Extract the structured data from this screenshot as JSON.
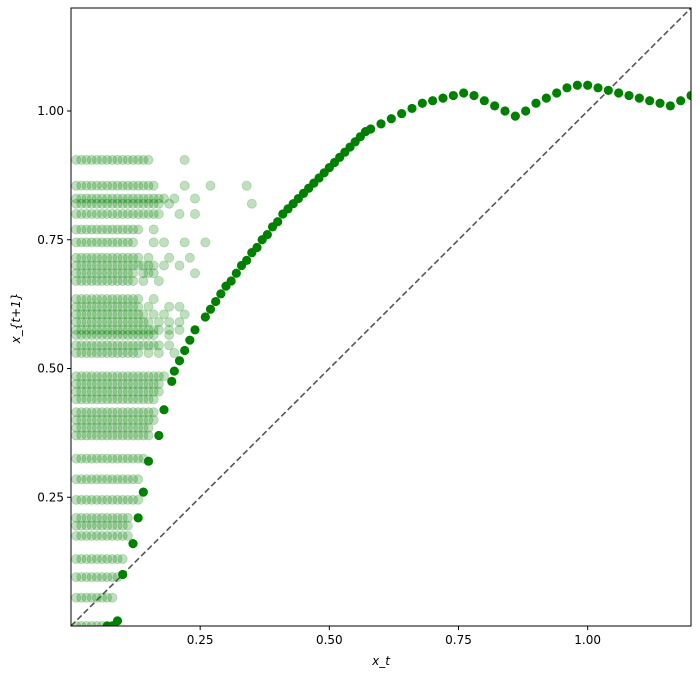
{
  "chart_data": {
    "type": "scatter",
    "title": "",
    "xlabel": "x_t",
    "ylabel": "x_{t+1}",
    "xlim": [
      0.0,
      1.2
    ],
    "ylim": [
      0.0,
      1.2
    ],
    "grid": false,
    "xticks": [
      0.25,
      0.5,
      0.75,
      1.0
    ],
    "yticks": [
      0.25,
      0.5,
      0.75,
      1.0
    ],
    "xtick_labels": [
      "0.25",
      "0.50",
      "0.75",
      "1.00"
    ],
    "ytick_labels": [
      "0.25",
      "0.50",
      "0.75",
      "1.00"
    ],
    "reference_line": {
      "style": "dashed",
      "color": "#555555",
      "points": [
        [
          0.0,
          0.0
        ],
        [
          1.2,
          1.2
        ]
      ]
    },
    "colors": {
      "main": "#008000",
      "cloud": "#008000"
    },
    "series": [
      {
        "opacity": 0.25,
        "cloud_rows": [
          {
            "y": 0.905,
            "x": [
              0.01,
              0.02,
              0.03,
              0.04,
              0.05,
              0.06,
              0.07,
              0.08,
              0.09,
              0.1,
              0.11,
              0.12,
              0.13,
              0.14,
              0.15,
              0.22
            ]
          },
          {
            "y": 0.855,
            "x": [
              0.01,
              0.02,
              0.03,
              0.04,
              0.05,
              0.06,
              0.07,
              0.08,
              0.09,
              0.1,
              0.11,
              0.12,
              0.13,
              0.14,
              0.15,
              0.16,
              0.22,
              0.27,
              0.34
            ]
          },
          {
            "y": 0.83,
            "x": [
              0.01,
              0.02,
              0.03,
              0.04,
              0.05,
              0.06,
              0.07,
              0.08,
              0.09,
              0.1,
              0.11,
              0.12,
              0.13,
              0.14,
              0.15,
              0.16,
              0.17,
              0.18,
              0.2,
              0.24
            ]
          },
          {
            "y": 0.82,
            "x": [
              0.01,
              0.02,
              0.03,
              0.04,
              0.05,
              0.06,
              0.07,
              0.08,
              0.09,
              0.1,
              0.11,
              0.12,
              0.13,
              0.14,
              0.15,
              0.16,
              0.17,
              0.19,
              0.35
            ]
          },
          {
            "y": 0.8,
            "x": [
              0.01,
              0.02,
              0.03,
              0.04,
              0.05,
              0.06,
              0.07,
              0.08,
              0.09,
              0.1,
              0.11,
              0.12,
              0.13,
              0.14,
              0.15,
              0.16,
              0.17,
              0.21,
              0.24
            ]
          },
          {
            "y": 0.77,
            "x": [
              0.01,
              0.02,
              0.03,
              0.04,
              0.05,
              0.06,
              0.07,
              0.08,
              0.09,
              0.1,
              0.11,
              0.12,
              0.13,
              0.16
            ]
          },
          {
            "y": 0.745,
            "x": [
              0.01,
              0.02,
              0.03,
              0.04,
              0.05,
              0.06,
              0.07,
              0.08,
              0.09,
              0.1,
              0.11,
              0.12,
              0.16,
              0.18,
              0.22,
              0.26
            ]
          },
          {
            "y": 0.715,
            "x": [
              0.01,
              0.02,
              0.03,
              0.04,
              0.05,
              0.06,
              0.07,
              0.08,
              0.09,
              0.1,
              0.11,
              0.12,
              0.13,
              0.15,
              0.19,
              0.23
            ]
          },
          {
            "y": 0.7,
            "x": [
              0.01,
              0.02,
              0.03,
              0.04,
              0.05,
              0.06,
              0.07,
              0.08,
              0.09,
              0.1,
              0.11,
              0.12,
              0.13,
              0.14,
              0.15,
              0.16,
              0.18,
              0.21
            ]
          },
          {
            "y": 0.685,
            "x": [
              0.01,
              0.02,
              0.03,
              0.04,
              0.05,
              0.06,
              0.07,
              0.08,
              0.09,
              0.1,
              0.11,
              0.12,
              0.14,
              0.15,
              0.16,
              0.24
            ]
          },
          {
            "y": 0.67,
            "x": [
              0.01,
              0.02,
              0.03,
              0.04,
              0.05,
              0.06,
              0.07,
              0.08,
              0.09,
              0.1,
              0.11,
              0.12,
              0.14,
              0.17
            ]
          },
          {
            "y": 0.635,
            "x": [
              0.01,
              0.02,
              0.03,
              0.04,
              0.05,
              0.06,
              0.07,
              0.08,
              0.09,
              0.1,
              0.11,
              0.12,
              0.13,
              0.16
            ]
          },
          {
            "y": 0.62,
            "x": [
              0.01,
              0.02,
              0.03,
              0.04,
              0.05,
              0.06,
              0.07,
              0.08,
              0.09,
              0.1,
              0.11,
              0.12,
              0.13,
              0.15,
              0.19,
              0.21
            ]
          },
          {
            "y": 0.605,
            "x": [
              0.01,
              0.02,
              0.03,
              0.04,
              0.05,
              0.06,
              0.07,
              0.08,
              0.09,
              0.1,
              0.11,
              0.12,
              0.13,
              0.14,
              0.16,
              0.18,
              0.22
            ]
          },
          {
            "y": 0.59,
            "x": [
              0.01,
              0.02,
              0.03,
              0.04,
              0.05,
              0.06,
              0.07,
              0.08,
              0.09,
              0.1,
              0.11,
              0.12,
              0.13,
              0.14,
              0.15,
              0.17,
              0.19,
              0.21
            ]
          },
          {
            "y": 0.575,
            "x": [
              0.01,
              0.02,
              0.03,
              0.04,
              0.05,
              0.06,
              0.07,
              0.08,
              0.09,
              0.1,
              0.11,
              0.12,
              0.13,
              0.14,
              0.15,
              0.16,
              0.17,
              0.19,
              0.21
            ]
          },
          {
            "y": 0.565,
            "x": [
              0.01,
              0.02,
              0.03,
              0.04,
              0.05,
              0.06,
              0.07,
              0.08,
              0.09,
              0.1,
              0.11,
              0.12,
              0.13,
              0.14,
              0.15,
              0.16,
              0.19
            ]
          },
          {
            "y": 0.545,
            "x": [
              0.01,
              0.02,
              0.03,
              0.04,
              0.05,
              0.06,
              0.07,
              0.08,
              0.09,
              0.1,
              0.11,
              0.12,
              0.13,
              0.14,
              0.15,
              0.16,
              0.17,
              0.19
            ]
          },
          {
            "y": 0.53,
            "x": [
              0.01,
              0.02,
              0.03,
              0.04,
              0.05,
              0.06,
              0.07,
              0.08,
              0.09,
              0.1,
              0.11,
              0.12,
              0.13,
              0.15,
              0.17,
              0.2
            ]
          },
          {
            "y": 0.485,
            "x": [
              0.01,
              0.02,
              0.03,
              0.04,
              0.05,
              0.06,
              0.07,
              0.08,
              0.09,
              0.1,
              0.11,
              0.12,
              0.13,
              0.14,
              0.15,
              0.16,
              0.17,
              0.18
            ]
          },
          {
            "y": 0.47,
            "x": [
              0.01,
              0.02,
              0.03,
              0.04,
              0.05,
              0.06,
              0.07,
              0.08,
              0.09,
              0.1,
              0.11,
              0.12,
              0.13,
              0.14,
              0.15,
              0.16,
              0.17
            ]
          },
          {
            "y": 0.455,
            "x": [
              0.01,
              0.02,
              0.03,
              0.04,
              0.05,
              0.06,
              0.07,
              0.08,
              0.09,
              0.1,
              0.11,
              0.12,
              0.13,
              0.14,
              0.15,
              0.16,
              0.17
            ]
          },
          {
            "y": 0.44,
            "x": [
              0.01,
              0.02,
              0.03,
              0.04,
              0.05,
              0.06,
              0.07,
              0.08,
              0.09,
              0.1,
              0.11,
              0.12,
              0.13,
              0.14,
              0.15,
              0.16
            ]
          },
          {
            "y": 0.415,
            "x": [
              0.01,
              0.02,
              0.03,
              0.04,
              0.05,
              0.06,
              0.07,
              0.08,
              0.09,
              0.1,
              0.11,
              0.12,
              0.13,
              0.14,
              0.15,
              0.16
            ]
          },
          {
            "y": 0.4,
            "x": [
              0.01,
              0.02,
              0.03,
              0.04,
              0.05,
              0.06,
              0.07,
              0.08,
              0.09,
              0.1,
              0.11,
              0.12,
              0.13,
              0.14,
              0.15,
              0.16
            ]
          },
          {
            "y": 0.385,
            "x": [
              0.01,
              0.02,
              0.03,
              0.04,
              0.05,
              0.06,
              0.07,
              0.08,
              0.09,
              0.1,
              0.11,
              0.12,
              0.13,
              0.14,
              0.15
            ]
          },
          {
            "y": 0.37,
            "x": [
              0.01,
              0.02,
              0.03,
              0.04,
              0.05,
              0.06,
              0.07,
              0.08,
              0.09,
              0.1,
              0.11,
              0.12,
              0.13,
              0.14,
              0.15
            ]
          },
          {
            "y": 0.325,
            "x": [
              0.01,
              0.02,
              0.03,
              0.04,
              0.05,
              0.06,
              0.07,
              0.08,
              0.09,
              0.1,
              0.11,
              0.12,
              0.13,
              0.14
            ]
          },
          {
            "y": 0.285,
            "x": [
              0.01,
              0.02,
              0.03,
              0.04,
              0.05,
              0.06,
              0.07,
              0.08,
              0.09,
              0.1,
              0.11,
              0.12,
              0.13
            ]
          },
          {
            "y": 0.245,
            "x": [
              0.01,
              0.02,
              0.03,
              0.04,
              0.05,
              0.06,
              0.07,
              0.08,
              0.09,
              0.1,
              0.11,
              0.12,
              0.13
            ]
          },
          {
            "y": 0.21,
            "x": [
              0.01,
              0.02,
              0.03,
              0.04,
              0.05,
              0.06,
              0.07,
              0.08,
              0.09,
              0.1,
              0.11
            ]
          },
          {
            "y": 0.195,
            "x": [
              0.01,
              0.02,
              0.03,
              0.04,
              0.05,
              0.06,
              0.07,
              0.08,
              0.09,
              0.1,
              0.11
            ]
          },
          {
            "y": 0.175,
            "x": [
              0.01,
              0.02,
              0.03,
              0.04,
              0.05,
              0.06,
              0.07,
              0.08,
              0.09,
              0.1,
              0.11
            ]
          },
          {
            "y": 0.13,
            "x": [
              0.01,
              0.02,
              0.03,
              0.04,
              0.05,
              0.06,
              0.07,
              0.08,
              0.09,
              0.1
            ]
          },
          {
            "y": 0.095,
            "x": [
              0.01,
              0.02,
              0.03,
              0.04,
              0.05,
              0.06,
              0.07,
              0.08,
              0.09
            ]
          },
          {
            "y": 0.055,
            "x": [
              0.01,
              0.02,
              0.03,
              0.04,
              0.05,
              0.06,
              0.07,
              0.08
            ]
          },
          {
            "y": 0.0,
            "x": [
              0.01,
              0.02,
              0.03,
              0.04,
              0.05,
              0.06,
              0.07,
              0.08
            ]
          }
        ]
      },
      {
        "opacity": 1.0,
        "points": [
          [
            0.07,
            0.0
          ],
          [
            0.08,
            0.0
          ],
          [
            0.09,
            0.01
          ],
          [
            0.1,
            0.1
          ],
          [
            0.12,
            0.16
          ],
          [
            0.13,
            0.21
          ],
          [
            0.14,
            0.26
          ],
          [
            0.15,
            0.32
          ],
          [
            0.17,
            0.37
          ],
          [
            0.18,
            0.42
          ],
          [
            0.195,
            0.475
          ],
          [
            0.2,
            0.495
          ],
          [
            0.21,
            0.515
          ],
          [
            0.22,
            0.535
          ],
          [
            0.23,
            0.555
          ],
          [
            0.24,
            0.575
          ],
          [
            0.26,
            0.6
          ],
          [
            0.27,
            0.615
          ],
          [
            0.28,
            0.63
          ],
          [
            0.29,
            0.645
          ],
          [
            0.3,
            0.66
          ],
          [
            0.31,
            0.67
          ],
          [
            0.32,
            0.685
          ],
          [
            0.33,
            0.7
          ],
          [
            0.34,
            0.71
          ],
          [
            0.35,
            0.725
          ],
          [
            0.36,
            0.735
          ],
          [
            0.37,
            0.75
          ],
          [
            0.38,
            0.76
          ],
          [
            0.39,
            0.775
          ],
          [
            0.4,
            0.785
          ],
          [
            0.41,
            0.8
          ],
          [
            0.42,
            0.81
          ],
          [
            0.43,
            0.82
          ],
          [
            0.44,
            0.83
          ],
          [
            0.45,
            0.84
          ],
          [
            0.46,
            0.85
          ],
          [
            0.47,
            0.86
          ],
          [
            0.48,
            0.87
          ],
          [
            0.49,
            0.88
          ],
          [
            0.5,
            0.89
          ],
          [
            0.51,
            0.9
          ],
          [
            0.52,
            0.91
          ],
          [
            0.53,
            0.92
          ],
          [
            0.54,
            0.93
          ],
          [
            0.55,
            0.94
          ],
          [
            0.56,
            0.95
          ],
          [
            0.57,
            0.96
          ],
          [
            0.58,
            0.965
          ],
          [
            0.6,
            0.975
          ],
          [
            0.62,
            0.985
          ],
          [
            0.64,
            0.995
          ],
          [
            0.66,
            1.005
          ],
          [
            0.68,
            1.015
          ],
          [
            0.7,
            1.02
          ],
          [
            0.72,
            1.025
          ],
          [
            0.74,
            1.03
          ],
          [
            0.76,
            1.035
          ],
          [
            0.78,
            1.03
          ],
          [
            0.8,
            1.02
          ],
          [
            0.82,
            1.01
          ],
          [
            0.84,
            1.0
          ],
          [
            0.86,
            0.99
          ],
          [
            0.88,
            1.0
          ],
          [
            0.9,
            1.015
          ],
          [
            0.92,
            1.025
          ],
          [
            0.94,
            1.035
          ],
          [
            0.96,
            1.045
          ],
          [
            0.98,
            1.05
          ],
          [
            1.0,
            1.05
          ],
          [
            1.02,
            1.045
          ],
          [
            1.04,
            1.04
          ],
          [
            1.06,
            1.035
          ],
          [
            1.08,
            1.03
          ],
          [
            1.1,
            1.025
          ],
          [
            1.12,
            1.02
          ],
          [
            1.14,
            1.015
          ],
          [
            1.16,
            1.01
          ],
          [
            1.18,
            1.02
          ],
          [
            1.2,
            1.03
          ]
        ]
      }
    ]
  }
}
